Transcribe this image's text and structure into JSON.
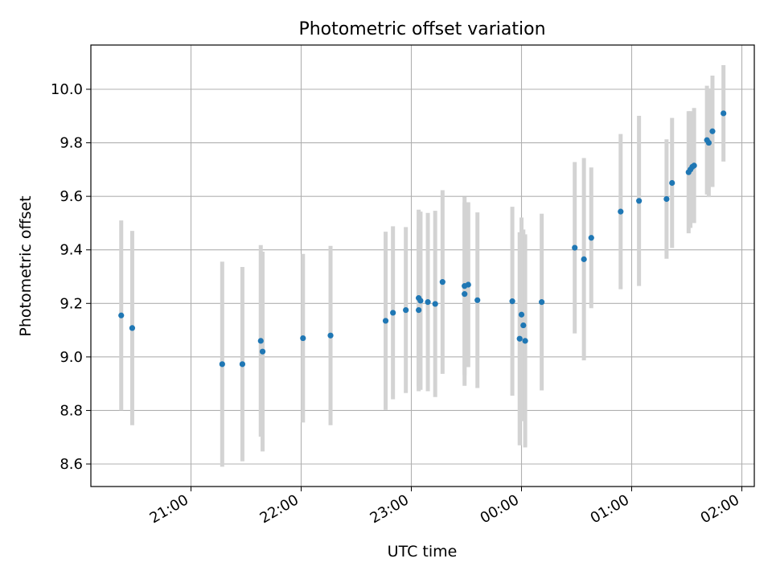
{
  "chart_data": {
    "type": "scatter",
    "title": "Photometric offset variation",
    "xlabel": "UTC time",
    "ylabel": "Photometric offset",
    "x_unit": "minutes relative to 00:00 UTC",
    "xlim": [
      -218,
      126
    ],
    "ylim": [
      8.51,
      10.17
    ],
    "x_ticks": [
      {
        "value": -180,
        "label": "21:00"
      },
      {
        "value": -120,
        "label": "22:00"
      },
      {
        "value": -60,
        "label": "23:00"
      },
      {
        "value": 0,
        "label": "00:00"
      },
      {
        "value": 60,
        "label": "01:00"
      },
      {
        "value": 120,
        "label": "02:00"
      }
    ],
    "y_ticks": [
      "8.6",
      "8.8",
      "9.0",
      "9.2",
      "9.4",
      "9.6",
      "9.8",
      "10.0"
    ],
    "grid": true,
    "marker_color": "#1f77b4",
    "errorbar_color": "#d3d3d3",
    "points": [
      {
        "x": -218,
        "y": 9.155,
        "err": 0.355
      },
      {
        "x": -212,
        "y": 9.108,
        "err": 0.363
      },
      {
        "x": -163,
        "y": 8.973,
        "err": 0.383
      },
      {
        "x": -152,
        "y": 8.973,
        "err": 0.363
      },
      {
        "x": -142,
        "y": 9.06,
        "err": 0.358
      },
      {
        "x": -141,
        "y": 9.02,
        "err": 0.373
      },
      {
        "x": -119,
        "y": 9.07,
        "err": 0.315
      },
      {
        "x": -104,
        "y": 9.08,
        "err": 0.335
      },
      {
        "x": -74,
        "y": 9.135,
        "err": 0.333
      },
      {
        "x": -70,
        "y": 9.165,
        "err": 0.323
      },
      {
        "x": -63,
        "y": 9.175,
        "err": 0.31
      },
      {
        "x": -56,
        "y": 9.175,
        "err": 0.303
      },
      {
        "x": -56,
        "y": 9.22,
        "err": 0.33
      },
      {
        "x": -55,
        "y": 9.21,
        "err": 0.333
      },
      {
        "x": -51,
        "y": 9.205,
        "err": 0.333
      },
      {
        "x": -47,
        "y": 9.198,
        "err": 0.348
      },
      {
        "x": -43,
        "y": 9.28,
        "err": 0.343
      },
      {
        "x": -31,
        "y": 9.235,
        "err": 0.343
      },
      {
        "x": -31,
        "y": 9.265,
        "err": 0.333
      },
      {
        "x": -29,
        "y": 9.27,
        "err": 0.308
      },
      {
        "x": -24,
        "y": 9.212,
        "err": 0.328
      },
      {
        "x": -5,
        "y": 9.208,
        "err": 0.353
      },
      {
        "x": -1,
        "y": 9.068,
        "err": 0.398
      },
      {
        "x": 0,
        "y": 9.158,
        "err": 0.363
      },
      {
        "x": 1,
        "y": 9.118,
        "err": 0.358
      },
      {
        "x": 2,
        "y": 9.06,
        "err": 0.398
      },
      {
        "x": 11,
        "y": 9.205,
        "err": 0.33
      },
      {
        "x": 29,
        "y": 9.408,
        "err": 0.32
      },
      {
        "x": 34,
        "y": 9.365,
        "err": 0.378
      },
      {
        "x": 38,
        "y": 9.445,
        "err": 0.263
      },
      {
        "x": 54,
        "y": 9.543,
        "err": 0.29
      },
      {
        "x": 64,
        "y": 9.583,
        "err": 0.318
      },
      {
        "x": 79,
        "y": 9.59,
        "err": 0.223
      },
      {
        "x": 82,
        "y": 9.65,
        "err": 0.243
      },
      {
        "x": 91,
        "y": 9.69,
        "err": 0.228
      },
      {
        "x": 92,
        "y": 9.7,
        "err": 0.218
      },
      {
        "x": 93,
        "y": 9.71,
        "err": 0.203
      },
      {
        "x": 94,
        "y": 9.715,
        "err": 0.215
      },
      {
        "x": 101,
        "y": 9.81,
        "err": 0.203
      },
      {
        "x": 102,
        "y": 9.8,
        "err": 0.203
      },
      {
        "x": 104,
        "y": 9.843,
        "err": 0.208
      },
      {
        "x": 110,
        "y": 9.91,
        "err": 0.18
      }
    ]
  }
}
